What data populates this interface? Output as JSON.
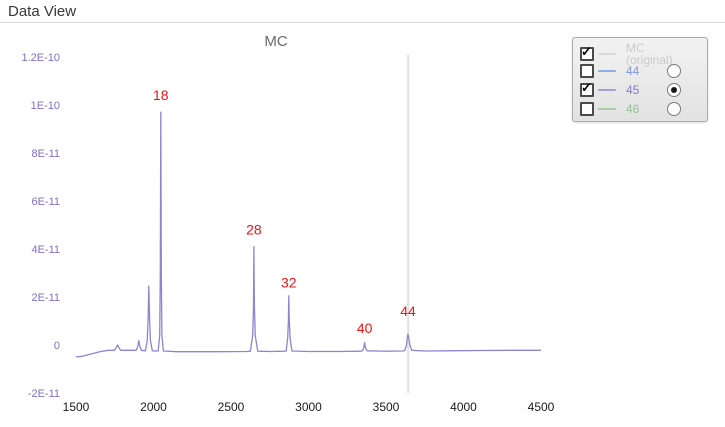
{
  "page": {
    "title": "Data View"
  },
  "legend": {
    "items": [
      {
        "label": "MC (original)",
        "line_color": "#dadada",
        "text_color": "#cbcbcb",
        "checked": true,
        "radio": null
      },
      {
        "label": "44",
        "line_color": "#8faee0",
        "text_color": "#7d97e0",
        "checked": false,
        "radio": false
      },
      {
        "label": "45",
        "line_color": "#a79bda",
        "text_color": "#8a79d1",
        "checked": true,
        "radio": true
      },
      {
        "label": "46",
        "line_color": "#a6cba6",
        "text_color": "#98be98",
        "checked": false,
        "radio": false
      }
    ]
  },
  "chart_data": {
    "type": "line",
    "title": "MC",
    "xlabel": "",
    "ylabel": "",
    "xlim": [
      1500,
      4500
    ],
    "ylim_e11": [
      -2,
      12
    ],
    "grid": false,
    "legend_position": "top-right",
    "x_ticks": [
      1500,
      2000,
      2500,
      3000,
      3500,
      4000,
      4500
    ],
    "y_ticks": [
      {
        "label": "1.2E-10",
        "v": 12
      },
      {
        "label": "1E-10",
        "v": 10
      },
      {
        "label": "8E-11",
        "v": 8
      },
      {
        "label": "6E-11",
        "v": 6
      },
      {
        "label": "4E-11",
        "v": 4
      },
      {
        "label": "2E-11",
        "v": 2
      },
      {
        "label": "0",
        "v": 0
      },
      {
        "label": "-2E-11",
        "v": -2
      }
    ],
    "y_value_unit": "1E-11 A",
    "axis_label_color_y": "#7e6ec8",
    "axis_label_color_x": "#1a1a1a",
    "annotation_color": "#f01212",
    "peak_labels": [
      {
        "text": "18",
        "t": 2047,
        "label_v": 10.2,
        "peak_v_e11": 9.7
      },
      {
        "text": "28",
        "t": 2648,
        "label_v": 4.6,
        "peak_v_e11": 4.1
      },
      {
        "text": "32",
        "t": 2873,
        "label_v": 2.4,
        "peak_v_e11": 2.05
      },
      {
        "text": "40",
        "t": 3362,
        "label_v": 0.5,
        "peak_v_e11": 0.1
      },
      {
        "text": "44",
        "t": 3642,
        "label_v": 1.2,
        "peak_v_e11": 0.45
      }
    ],
    "cursor_line": {
      "t": 3643,
      "v_top": 12.1,
      "v_bottom": -2,
      "color": "#e2e2e2"
    },
    "series": [
      {
        "name": "45",
        "color": "#8f84d0",
        "points_t_v_e11": [
          [
            1500,
            -0.5
          ],
          [
            1540,
            -0.47
          ],
          [
            1600,
            -0.37
          ],
          [
            1660,
            -0.27
          ],
          [
            1710,
            -0.22
          ],
          [
            1748,
            -0.22
          ],
          [
            1758,
            -0.12
          ],
          [
            1768,
            0.0
          ],
          [
            1778,
            -0.12
          ],
          [
            1788,
            -0.22
          ],
          [
            1845,
            -0.22
          ],
          [
            1888,
            -0.22
          ],
          [
            1898,
            -0.08
          ],
          [
            1905,
            0.18
          ],
          [
            1913,
            -0.08
          ],
          [
            1922,
            -0.22
          ],
          [
            1948,
            -0.24
          ],
          [
            1960,
            0.2
          ],
          [
            1966,
            1.2
          ],
          [
            1970,
            2.45
          ],
          [
            1974,
            1.2
          ],
          [
            1980,
            0.2
          ],
          [
            1992,
            -0.24
          ],
          [
            2030,
            -0.25
          ],
          [
            2040,
            0.4
          ],
          [
            2044,
            3.0
          ],
          [
            2047,
            9.7
          ],
          [
            2050,
            3.0
          ],
          [
            2054,
            0.4
          ],
          [
            2064,
            -0.25
          ],
          [
            2150,
            -0.28
          ],
          [
            2400,
            -0.28
          ],
          [
            2600,
            -0.27
          ],
          [
            2625,
            -0.26
          ],
          [
            2640,
            0.4
          ],
          [
            2645,
            1.6
          ],
          [
            2648,
            4.1
          ],
          [
            2651,
            1.6
          ],
          [
            2656,
            0.4
          ],
          [
            2672,
            -0.26
          ],
          [
            2760,
            -0.27
          ],
          [
            2845,
            -0.26
          ],
          [
            2856,
            -0.25
          ],
          [
            2866,
            0.3
          ],
          [
            2870,
            1.0
          ],
          [
            2873,
            2.05
          ],
          [
            2876,
            1.0
          ],
          [
            2881,
            0.3
          ],
          [
            2893,
            -0.25
          ],
          [
            3000,
            -0.27
          ],
          [
            3200,
            -0.27
          ],
          [
            3335,
            -0.26
          ],
          [
            3348,
            -0.24
          ],
          [
            3356,
            -0.12
          ],
          [
            3362,
            0.1
          ],
          [
            3368,
            -0.12
          ],
          [
            3378,
            -0.24
          ],
          [
            3500,
            -0.26
          ],
          [
            3610,
            -0.25
          ],
          [
            3622,
            -0.22
          ],
          [
            3632,
            0.0
          ],
          [
            3638,
            0.33
          ],
          [
            3642,
            0.45
          ],
          [
            3646,
            0.33
          ],
          [
            3654,
            0.0
          ],
          [
            3666,
            -0.22
          ],
          [
            3750,
            -0.25
          ],
          [
            3900,
            -0.24
          ],
          [
            4100,
            -0.23
          ],
          [
            4300,
            -0.22
          ],
          [
            4500,
            -0.22
          ]
        ]
      }
    ]
  }
}
